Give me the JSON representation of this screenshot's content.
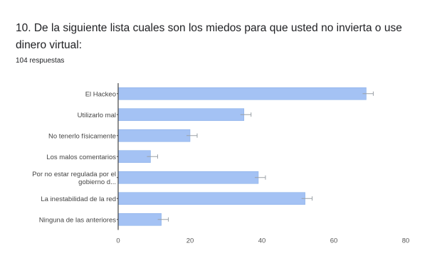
{
  "question": {
    "title": "10. De la siguiente lista cuales son los miedos para que usted no invierta o use dinero virtual:",
    "responses": "104 respuestas"
  },
  "colors": {
    "bar": "#a4c2f4",
    "bar_edge": "#8ab0e8",
    "axis": "#444444",
    "grid": "#e0e0e0"
  },
  "chart_data": {
    "type": "bar",
    "orientation": "horizontal",
    "categories": [
      [
        "El Hackeo"
      ],
      [
        "Utilizarlo mal"
      ],
      [
        "No tenerlo físicamente"
      ],
      [
        "Los malos comentarios"
      ],
      [
        "Por no estar regulada por el",
        "gobierno d..."
      ],
      [
        "La inestabilidad de la red"
      ],
      [
        "Ninguna de las anteriores"
      ]
    ],
    "values": [
      69,
      35,
      20,
      9,
      39,
      52,
      12
    ],
    "xlim": [
      0,
      80
    ],
    "xticks": [
      "0",
      "20",
      "40",
      "60",
      "80"
    ],
    "grid": false,
    "error_bars": true
  }
}
